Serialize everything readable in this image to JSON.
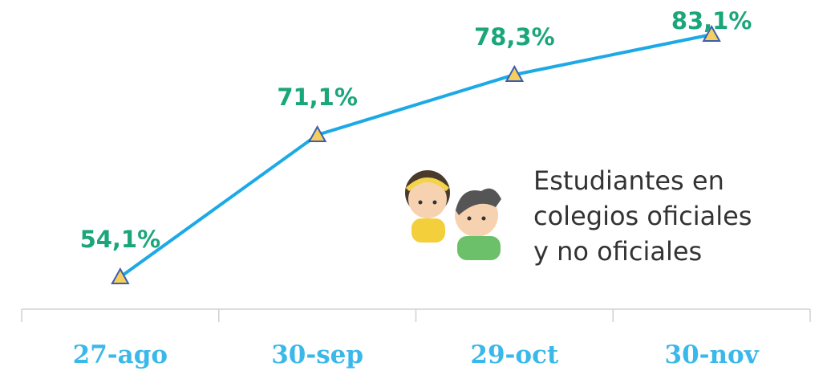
{
  "chart_data": {
    "type": "line",
    "categories": [
      "27-ago",
      "30-sep",
      "29-oct",
      "30-nov"
    ],
    "values": [
      54.1,
      71.1,
      78.3,
      83.1
    ],
    "value_labels": [
      "54,1%",
      "71,1%",
      "78,3%",
      "83,1%"
    ],
    "color": "#1ca9e6",
    "marker_color": "#f5cf5e",
    "label_color": "#1aa67a",
    "category_color": "#3bb8ea",
    "annotation": [
      "Estudiantes en",
      "colegios oficiales",
      "y no oficiales"
    ]
  }
}
